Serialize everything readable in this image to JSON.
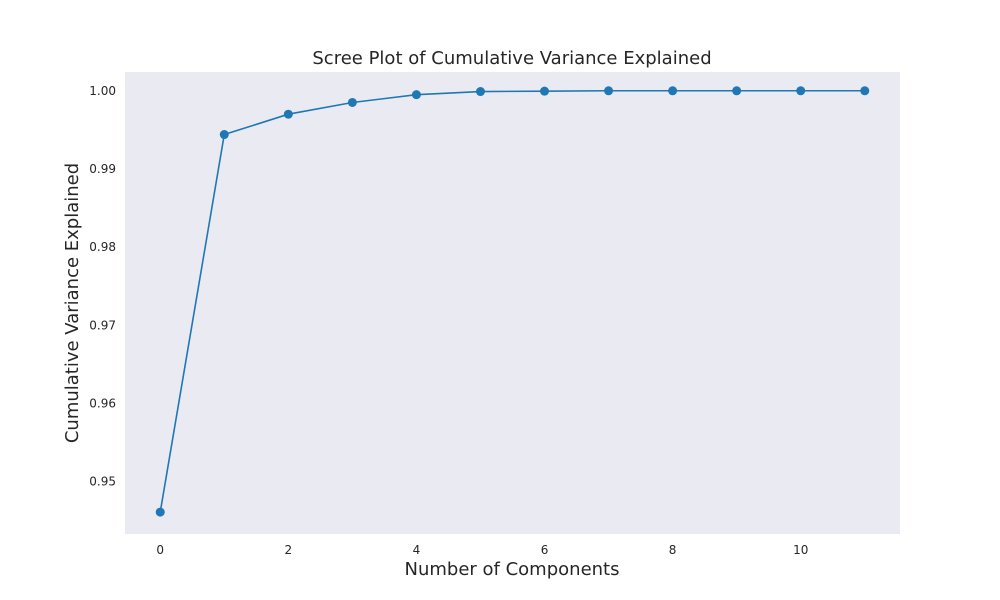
{
  "chart_data": {
    "type": "line",
    "title": "Scree Plot of Cumulative Variance Explained",
    "xlabel": "Number of Components",
    "ylabel": "Cumulative Variance Explained",
    "x": [
      0,
      1,
      2,
      3,
      4,
      5,
      6,
      7,
      8,
      9,
      10,
      11
    ],
    "series": [
      {
        "values": [
          0.9461,
          0.9944,
          0.997,
          0.9985,
          0.9995,
          0.9999,
          0.99995,
          1.0,
          1.0,
          1.0,
          1.0,
          1.0
        ],
        "color": "#1f77b4",
        "marker": "circle"
      }
    ],
    "xlim": [
      -0.55,
      11.55
    ],
    "ylim": [
      0.9433,
      1.0024
    ],
    "xticks": [
      0,
      2,
      4,
      6,
      8,
      10
    ],
    "xtick_labels": [
      "0",
      "2",
      "4",
      "6",
      "8",
      "10"
    ],
    "yticks": [
      0.95,
      0.96,
      0.97,
      0.98,
      0.99,
      1.0
    ],
    "ytick_labels": [
      "0.95",
      "0.96",
      "0.97",
      "0.98",
      "0.99",
      "1.00"
    ],
    "grid": false,
    "plot_background": "#eaeaf2"
  }
}
